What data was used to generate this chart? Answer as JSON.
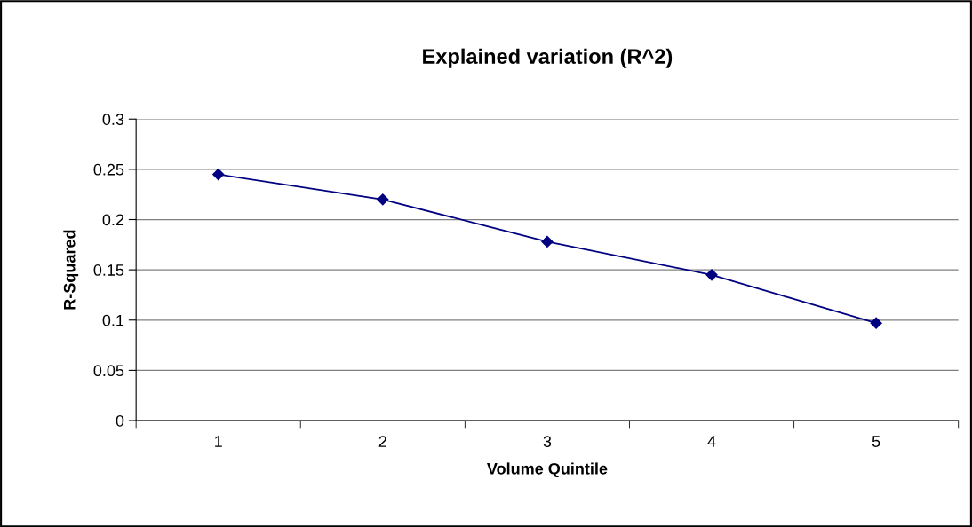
{
  "chart_data": {
    "type": "line",
    "title": "Explained variation (R^2)",
    "xlabel": "Volume Quintile",
    "ylabel": "R-Squared",
    "categories": [
      "1",
      "2",
      "3",
      "4",
      "5"
    ],
    "series": [
      {
        "color": "#000080",
        "values": [
          0.245,
          0.22,
          0.178,
          0.145,
          0.097
        ]
      }
    ],
    "ylim": [
      0,
      0.3
    ],
    "yticks": [
      0,
      0.05,
      0.1,
      0.15,
      0.2,
      0.25,
      0.3
    ],
    "grid": "y",
    "marker": "diamond",
    "line_style": "solid"
  }
}
